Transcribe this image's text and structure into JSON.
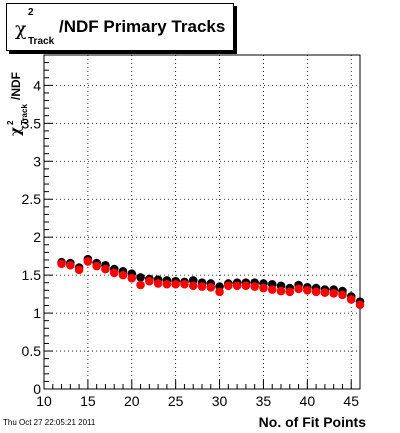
{
  "title": {
    "symbol": "χ",
    "superscript": "2",
    "subscript": "Track",
    "text": "/NDF Primary Tracks"
  },
  "timestamp": "Thu Oct 27 22:05:21 2011",
  "chart_data": {
    "type": "scatter",
    "xlabel": "No. of Fit Points",
    "ylabel": "χ²Track/NDF",
    "ylabel_parts": {
      "symbol": "χ",
      "superscript": "2",
      "subscript": "Track",
      "suffix": "/NDF"
    },
    "xlim": [
      10,
      46
    ],
    "ylim": [
      0,
      4.4
    ],
    "xticks": [
      10,
      15,
      20,
      25,
      30,
      35,
      40,
      45
    ],
    "yticks": [
      0,
      0.5,
      1,
      1.5,
      2,
      2.5,
      3,
      3.5,
      4
    ],
    "ytick_labels": [
      "0",
      "0.5",
      "1",
      "1.5",
      "2",
      "2.5",
      "3",
      "3.5",
      "4"
    ],
    "grid": true,
    "series": [
      {
        "color": "#000000",
        "x": [
          12,
          13,
          14,
          15,
          16,
          17,
          18,
          19,
          20,
          21,
          22,
          23,
          24,
          25,
          26,
          27,
          28,
          29,
          30,
          31,
          32,
          33,
          34,
          35,
          36,
          37,
          38,
          39,
          40,
          41,
          42,
          43,
          44,
          45,
          46
        ],
        "values": [
          1.67,
          1.66,
          1.6,
          1.71,
          1.66,
          1.63,
          1.58,
          1.55,
          1.52,
          1.47,
          1.45,
          1.44,
          1.43,
          1.42,
          1.41,
          1.43,
          1.4,
          1.39,
          1.35,
          1.39,
          1.4,
          1.4,
          1.4,
          1.39,
          1.38,
          1.36,
          1.33,
          1.37,
          1.34,
          1.33,
          1.31,
          1.31,
          1.29,
          1.22,
          1.15
        ]
      },
      {
        "color": "#ff0000",
        "x": [
          12,
          13,
          14,
          15,
          16,
          17,
          18,
          19,
          20,
          21,
          22,
          23,
          24,
          25,
          26,
          27,
          28,
          29,
          30,
          31,
          32,
          33,
          34,
          35,
          36,
          37,
          38,
          39,
          40,
          41,
          42,
          43,
          44,
          45,
          46
        ],
        "values": [
          1.65,
          1.63,
          1.57,
          1.68,
          1.62,
          1.58,
          1.53,
          1.5,
          1.46,
          1.37,
          1.42,
          1.39,
          1.38,
          1.38,
          1.38,
          1.36,
          1.35,
          1.34,
          1.28,
          1.36,
          1.36,
          1.36,
          1.35,
          1.33,
          1.31,
          1.29,
          1.28,
          1.32,
          1.3,
          1.28,
          1.27,
          1.26,
          1.24,
          1.18,
          1.11
        ]
      }
    ]
  }
}
